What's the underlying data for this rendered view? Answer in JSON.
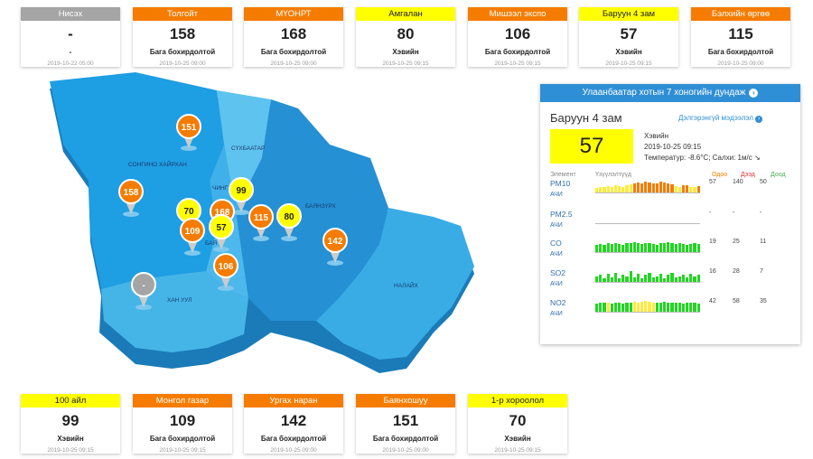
{
  "colors": {
    "orange": "#f57c00",
    "yellow": "#ffff00",
    "grey": "#9e9e9e",
    "blue": "#2f8fd6"
  },
  "top_cards": [
    {
      "name": "Нисэх",
      "value": "-",
      "status": "-",
      "time": "2019-10-22 05:00",
      "color": "#a5a5a5",
      "dark": false
    },
    {
      "name": "Толгойт",
      "value": "158",
      "status": "Бага бохирдолтой",
      "time": "2019-10-25 09:00",
      "color": "#f57c00",
      "dark": false
    },
    {
      "name": "МҮОНРТ",
      "value": "168",
      "status": "Бага бохирдолтой",
      "time": "2019-10-25 09:00",
      "color": "#f57c00",
      "dark": false
    },
    {
      "name": "Амгалан",
      "value": "80",
      "status": "Хэвийн",
      "time": "2019-10-25 09:15",
      "color": "#ffff00",
      "dark": true
    },
    {
      "name": "Мишээл экспо",
      "value": "106",
      "status": "Бага бохирдолтой",
      "time": "2019-10-25 09:15",
      "color": "#f57c00",
      "dark": false
    },
    {
      "name": "Баруун 4 зам",
      "value": "57",
      "status": "Хэвийн",
      "time": "2019-10-25 09:15",
      "color": "#ffff00",
      "dark": true
    },
    {
      "name": "Бэлхийн өргөө",
      "value": "115",
      "status": "Бага бохирдолтой",
      "time": "2019-10-25 09:00",
      "color": "#f57c00",
      "dark": false
    }
  ],
  "bottom_cards": [
    {
      "name": "100 айл",
      "value": "99",
      "status": "Хэвийн",
      "time": "2019-10-25 09:15",
      "color": "#ffff00",
      "dark": true
    },
    {
      "name": "Монгол газар",
      "value": "109",
      "status": "Бага бохирдолтой",
      "time": "2019-10-25 09:15",
      "color": "#f57c00",
      "dark": false
    },
    {
      "name": "Ургах наран",
      "value": "142",
      "status": "Бага бохирдолтой",
      "time": "2019-10-25 09:00",
      "color": "#f57c00",
      "dark": false
    },
    {
      "name": "Баянхошуу",
      "value": "151",
      "status": "Бага бохирдолтой",
      "time": "2019-10-25 09:00",
      "color": "#f57c00",
      "dark": false
    },
    {
      "name": "1-р хороолол",
      "value": "70",
      "status": "Хэвийн",
      "time": "2019-10-25 09:15",
      "color": "#ffff00",
      "dark": true
    }
  ],
  "map": {
    "districts": [
      "СҮХБААТАР",
      "СОНГИНО ХАЙРХАН",
      "ЧИНГЭ",
      "БАЯНЗҮРХ",
      "БАЯ",
      "ХАН УУЛ",
      "НАЛАЙХ"
    ],
    "pins": [
      {
        "value": "151",
        "color": "#f57c00"
      },
      {
        "value": "158",
        "color": "#f57c00"
      },
      {
        "value": "99",
        "color": "#ffff00"
      },
      {
        "value": "70",
        "color": "#ffff00"
      },
      {
        "value": "168",
        "color": "#f57c00"
      },
      {
        "value": "115",
        "color": "#f57c00"
      },
      {
        "value": "80",
        "color": "#ffff00"
      },
      {
        "value": "109",
        "color": "#f57c00"
      },
      {
        "value": "57",
        "color": "#ffff00"
      },
      {
        "value": "142",
        "color": "#f57c00"
      },
      {
        "value": "106",
        "color": "#f57c00"
      },
      {
        "value": "-",
        "color": "#a5a5a5"
      }
    ]
  },
  "panel": {
    "header": "Улаанбаатар хотын 7 хоногийн дундаж",
    "header_icon": "arrow-right-circle-icon",
    "station": "Баруун 4 зам",
    "more_link": "Дэлгэрэнгүй мэдээлэл",
    "aqi": "57",
    "aqi_color": "#ffff00",
    "status": "Хэвийн",
    "datetime": "2019-10-25 09:15",
    "weather": "Температур: -8.6°C; Салхи: 1м/с",
    "wind_icon": "wind-arrow-icon",
    "col_element": "Элемент",
    "col_indicator": "Үзүүлэлтүүд",
    "col_now": "Одоо",
    "col_max": "Дээд",
    "col_min": "Доод",
    "pollutants": [
      {
        "name": "PM10",
        "sub": "АЧИ",
        "now": "57",
        "max": "140",
        "min": "50",
        "bars": [
          {
            "level": 0.4,
            "color": "#ffeb3b"
          },
          {
            "level": 0.5,
            "color": "#ffeb3b"
          },
          {
            "level": 0.45,
            "color": "#ffeb3b"
          },
          {
            "level": 0.55,
            "color": "#ffeb3b"
          },
          {
            "level": 0.5,
            "color": "#ffeb3b"
          },
          {
            "level": 0.6,
            "color": "#ffeb3b"
          },
          {
            "level": 0.55,
            "color": "#ffeb3b"
          },
          {
            "level": 0.5,
            "color": "#ffeb3b"
          },
          {
            "level": 0.6,
            "color": "#ffeb3b"
          },
          {
            "level": 0.7,
            "color": "#ffeb3b"
          },
          {
            "level": 0.75,
            "color": "#f57c00"
          },
          {
            "level": 0.85,
            "color": "#f57c00"
          },
          {
            "level": 0.8,
            "color": "#f57c00"
          },
          {
            "level": 0.9,
            "color": "#f57c00"
          },
          {
            "level": 0.85,
            "color": "#f57c00"
          },
          {
            "level": 0.8,
            "color": "#f57c00"
          },
          {
            "level": 0.75,
            "color": "#f57c00"
          },
          {
            "level": 0.9,
            "color": "#f57c00"
          },
          {
            "level": 0.85,
            "color": "#f57c00"
          },
          {
            "level": 0.8,
            "color": "#f57c00"
          },
          {
            "level": 0.7,
            "color": "#f57c00"
          },
          {
            "level": 0.55,
            "color": "#ffeb3b"
          },
          {
            "level": 0.5,
            "color": "#ffeb3b"
          },
          {
            "level": 0.6,
            "color": "#f57c00"
          },
          {
            "level": 0.65,
            "color": "#f57c00"
          },
          {
            "level": 0.5,
            "color": "#ffeb3b"
          },
          {
            "level": 0.45,
            "color": "#ffeb3b"
          },
          {
            "level": 0.55,
            "color": "#f57c00"
          }
        ]
      },
      {
        "name": "PM2.5",
        "sub": "АЧИ",
        "now": "-",
        "max": "-",
        "min": "-",
        "bars": []
      },
      {
        "name": "CO",
        "sub": "АЧИ",
        "now": "19",
        "max": "25",
        "min": "11",
        "bars": [
          {
            "level": 0.6,
            "color": "#22d622"
          },
          {
            "level": 0.7,
            "color": "#22d622"
          },
          {
            "level": 0.65,
            "color": "#22d622"
          },
          {
            "level": 0.75,
            "color": "#22d622"
          },
          {
            "level": 0.7,
            "color": "#22d622"
          },
          {
            "level": 0.8,
            "color": "#22d622"
          },
          {
            "level": 0.7,
            "color": "#22d622"
          },
          {
            "level": 0.65,
            "color": "#22d622"
          },
          {
            "level": 0.75,
            "color": "#22d622"
          },
          {
            "level": 0.8,
            "color": "#22d622"
          },
          {
            "level": 0.85,
            "color": "#22d622"
          },
          {
            "level": 0.75,
            "color": "#22d622"
          },
          {
            "level": 0.7,
            "color": "#22d622"
          },
          {
            "level": 0.8,
            "color": "#22d622"
          },
          {
            "level": 0.75,
            "color": "#22d622"
          },
          {
            "level": 0.7,
            "color": "#22d622"
          },
          {
            "level": 0.65,
            "color": "#22d622"
          },
          {
            "level": 0.8,
            "color": "#22d622"
          },
          {
            "level": 0.75,
            "color": "#22d622"
          },
          {
            "level": 0.85,
            "color": "#22d622"
          },
          {
            "level": 0.8,
            "color": "#22d622"
          },
          {
            "level": 0.7,
            "color": "#22d622"
          },
          {
            "level": 0.75,
            "color": "#22d622"
          },
          {
            "level": 0.7,
            "color": "#22d622"
          },
          {
            "level": 0.65,
            "color": "#22d622"
          },
          {
            "level": 0.7,
            "color": "#22d622"
          },
          {
            "level": 0.75,
            "color": "#22d622"
          },
          {
            "level": 0.7,
            "color": "#22d622"
          }
        ]
      },
      {
        "name": "SO2",
        "sub": "АЧИ",
        "now": "16",
        "max": "28",
        "min": "7",
        "bars": [
          {
            "level": 0.5,
            "color": "#22d622"
          },
          {
            "level": 0.6,
            "color": "#22d622"
          },
          {
            "level": 0.3,
            "color": "#22d622"
          },
          {
            "level": 0.7,
            "color": "#22d622"
          },
          {
            "level": 0.4,
            "color": "#22d622"
          },
          {
            "level": 0.8,
            "color": "#22d622"
          },
          {
            "level": 0.3,
            "color": "#22d622"
          },
          {
            "level": 0.6,
            "color": "#22d622"
          },
          {
            "level": 0.5,
            "color": "#22d622"
          },
          {
            "level": 0.9,
            "color": "#22d622"
          },
          {
            "level": 0.4,
            "color": "#22d622"
          },
          {
            "level": 0.7,
            "color": "#22d622"
          },
          {
            "level": 0.3,
            "color": "#22d622"
          },
          {
            "level": 0.6,
            "color": "#22d622"
          },
          {
            "level": 0.8,
            "color": "#22d622"
          },
          {
            "level": 0.4,
            "color": "#22d622"
          },
          {
            "level": 0.5,
            "color": "#22d622"
          },
          {
            "level": 0.7,
            "color": "#22d622"
          },
          {
            "level": 0.3,
            "color": "#22d622"
          },
          {
            "level": 0.6,
            "color": "#22d622"
          },
          {
            "level": 0.8,
            "color": "#22d622"
          },
          {
            "level": 0.4,
            "color": "#22d622"
          },
          {
            "level": 0.5,
            "color": "#22d622"
          },
          {
            "level": 0.6,
            "color": "#22d622"
          },
          {
            "level": 0.4,
            "color": "#22d622"
          },
          {
            "level": 0.7,
            "color": "#22d622"
          },
          {
            "level": 0.5,
            "color": "#22d622"
          },
          {
            "level": 0.6,
            "color": "#22d622"
          }
        ]
      },
      {
        "name": "NO2",
        "sub": "АЧИ",
        "now": "42",
        "max": "58",
        "min": "35",
        "bars": [
          {
            "level": 0.7,
            "color": "#22d622"
          },
          {
            "level": 0.75,
            "color": "#22d622"
          },
          {
            "level": 0.8,
            "color": "#22d622"
          },
          {
            "level": 0.75,
            "color": "#ffeb3b"
          },
          {
            "level": 0.7,
            "color": "#22d622"
          },
          {
            "level": 0.8,
            "color": "#22d622"
          },
          {
            "level": 0.75,
            "color": "#22d622"
          },
          {
            "level": 0.7,
            "color": "#22d622"
          },
          {
            "level": 0.8,
            "color": "#22d622"
          },
          {
            "level": 0.75,
            "color": "#22d622"
          },
          {
            "level": 0.85,
            "color": "#ffeb3b"
          },
          {
            "level": 0.8,
            "color": "#ffeb3b"
          },
          {
            "level": 0.85,
            "color": "#ffeb3b"
          },
          {
            "level": 0.9,
            "color": "#ffeb3b"
          },
          {
            "level": 0.85,
            "color": "#ffeb3b"
          },
          {
            "level": 0.8,
            "color": "#ffeb3b"
          },
          {
            "level": 0.75,
            "color": "#22d622"
          },
          {
            "level": 0.8,
            "color": "#22d622"
          },
          {
            "level": 0.85,
            "color": "#22d622"
          },
          {
            "level": 0.8,
            "color": "#22d622"
          },
          {
            "level": 0.75,
            "color": "#22d622"
          },
          {
            "level": 0.8,
            "color": "#22d622"
          },
          {
            "level": 0.75,
            "color": "#22d622"
          },
          {
            "level": 0.7,
            "color": "#22d622"
          },
          {
            "level": 0.75,
            "color": "#22d622"
          },
          {
            "level": 0.8,
            "color": "#22d622"
          },
          {
            "level": 0.75,
            "color": "#22d622"
          },
          {
            "level": 0.7,
            "color": "#22d622"
          }
        ]
      }
    ]
  }
}
